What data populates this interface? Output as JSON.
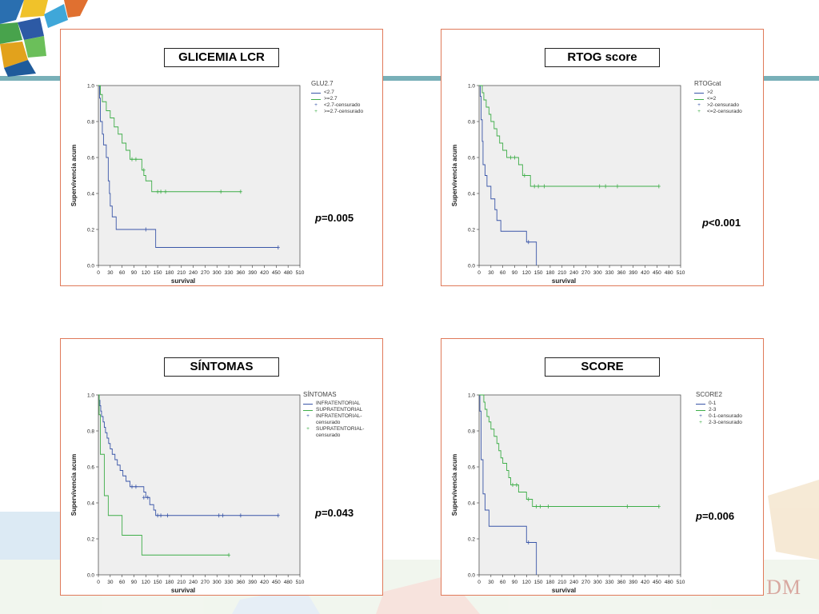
{
  "watermark": "DM",
  "charts": [
    {
      "title": "GLICEMIA LCR",
      "legend_title": "GLU2.7",
      "legend": [
        "<2.7",
        ">=2.7",
        "<2.7-censurado",
        ">=2.7-censurado"
      ],
      "pvalue_prefix": "p",
      "pvalue_rest": "=0.005"
    },
    {
      "title": "RTOG score",
      "legend_title": "RTOGcat",
      "legend": [
        ">2",
        "<=2",
        ">2-censurado",
        "<=2-censurado"
      ],
      "pvalue_prefix": "p",
      "pvalue_rest": "<0.001"
    },
    {
      "title": "SÍNTOMAS",
      "legend_title": "SÍNTOMAS",
      "legend": [
        "INFRATENTORIAL",
        "SUPRATENTORIAL",
        "INFRATENTORIAL-censurado",
        "SUPRATENTORIAL-censurado"
      ],
      "pvalue_prefix": "p",
      "pvalue_rest": "=0.043"
    },
    {
      "title": "SCORE",
      "legend_title": "SCORE2",
      "legend": [
        "0-1",
        "2-3",
        "0-1-censurado",
        "2-3-censurado"
      ],
      "pvalue_prefix": "p",
      "pvalue_rest": "=0.006"
    }
  ],
  "chart_data": [
    {
      "type": "line",
      "subtype": "kaplan-meier step",
      "title": "GLICEMIA LCR",
      "xlabel": "survival",
      "ylabel": "Supervivencia acum",
      "xlim": [
        0,
        510
      ],
      "ylim": [
        0,
        1.0
      ],
      "xticks": [
        0,
        30,
        60,
        90,
        120,
        150,
        180,
        210,
        240,
        270,
        300,
        330,
        360,
        390,
        420,
        450,
        480,
        510
      ],
      "yticks": [
        0.0,
        0.2,
        0.4,
        0.6,
        0.8,
        1.0
      ],
      "colors": {
        "blue": "#3a56a8",
        "green": "#3fae49"
      },
      "series": [
        {
          "name": "<2.7",
          "color": "#3a56a8",
          "steps": [
            [
              0,
              1.0
            ],
            [
              3,
              0.93
            ],
            [
              5,
              0.8
            ],
            [
              10,
              0.73
            ],
            [
              13,
              0.67
            ],
            [
              20,
              0.6
            ],
            [
              25,
              0.47
            ],
            [
              28,
              0.4
            ],
            [
              30,
              0.33
            ],
            [
              35,
              0.27
            ],
            [
              45,
              0.2
            ],
            [
              145,
              0.1
            ],
            [
              455,
              0.1
            ]
          ],
          "censored": [
            [
              120,
              0.2
            ],
            [
              455,
              0.1
            ]
          ]
        },
        {
          "name": ">=2.7",
          "color": "#3fae49",
          "steps": [
            [
              0,
              1.0
            ],
            [
              5,
              0.95
            ],
            [
              10,
              0.91
            ],
            [
              20,
              0.86
            ],
            [
              30,
              0.82
            ],
            [
              40,
              0.77
            ],
            [
              50,
              0.73
            ],
            [
              60,
              0.68
            ],
            [
              70,
              0.64
            ],
            [
              80,
              0.59
            ],
            [
              110,
              0.53
            ],
            [
              115,
              0.5
            ],
            [
              120,
              0.47
            ],
            [
              135,
              0.41
            ],
            [
              360,
              0.41
            ]
          ],
          "censored": [
            [
              85,
              0.59
            ],
            [
              95,
              0.59
            ],
            [
              115,
              0.53
            ],
            [
              150,
              0.41
            ],
            [
              158,
              0.41
            ],
            [
              170,
              0.41
            ],
            [
              310,
              0.41
            ],
            [
              360,
              0.41
            ]
          ]
        }
      ]
    },
    {
      "type": "line",
      "subtype": "kaplan-meier step",
      "title": "RTOG score",
      "xlabel": "survival",
      "ylabel": "Supervivencia acum",
      "xlim": [
        0,
        510
      ],
      "ylim": [
        0,
        1.0
      ],
      "xticks": [
        0,
        30,
        60,
        90,
        120,
        150,
        180,
        210,
        240,
        270,
        300,
        330,
        360,
        390,
        420,
        450,
        480,
        510
      ],
      "yticks": [
        0.0,
        0.2,
        0.4,
        0.6,
        0.8,
        1.0
      ],
      "series": [
        {
          "name": ">2",
          "color": "#3a56a8",
          "steps": [
            [
              0,
              1.0
            ],
            [
              3,
              0.94
            ],
            [
              5,
              0.81
            ],
            [
              8,
              0.69
            ],
            [
              10,
              0.56
            ],
            [
              15,
              0.5
            ],
            [
              20,
              0.44
            ],
            [
              30,
              0.37
            ],
            [
              40,
              0.31
            ],
            [
              45,
              0.25
            ],
            [
              55,
              0.19
            ],
            [
              120,
              0.13
            ],
            [
              145,
              0.0
            ]
          ],
          "censored": [
            [
              125,
              0.13
            ]
          ]
        },
        {
          "name": "<=2",
          "color": "#3fae49",
          "steps": [
            [
              0,
              1.0
            ],
            [
              8,
              0.96
            ],
            [
              12,
              0.92
            ],
            [
              18,
              0.88
            ],
            [
              25,
              0.84
            ],
            [
              30,
              0.8
            ],
            [
              38,
              0.76
            ],
            [
              45,
              0.72
            ],
            [
              52,
              0.68
            ],
            [
              60,
              0.64
            ],
            [
              70,
              0.6
            ],
            [
              100,
              0.56
            ],
            [
              110,
              0.5
            ],
            [
              130,
              0.44
            ],
            [
              455,
              0.44
            ]
          ],
          "censored": [
            [
              80,
              0.6
            ],
            [
              90,
              0.6
            ],
            [
              115,
              0.5
            ],
            [
              140,
              0.44
            ],
            [
              150,
              0.44
            ],
            [
              165,
              0.44
            ],
            [
              305,
              0.44
            ],
            [
              320,
              0.44
            ],
            [
              350,
              0.44
            ],
            [
              455,
              0.44
            ]
          ]
        }
      ]
    },
    {
      "type": "line",
      "subtype": "kaplan-meier step",
      "title": "SÍNTOMAS",
      "xlabel": "survival",
      "ylabel": "Supervivencia acum",
      "xlim": [
        0,
        510
      ],
      "ylim": [
        0,
        1.0
      ],
      "xticks": [
        0,
        30,
        60,
        90,
        120,
        150,
        180,
        210,
        240,
        270,
        300,
        330,
        360,
        390,
        420,
        450,
        480,
        510
      ],
      "yticks": [
        0.0,
        0.2,
        0.4,
        0.6,
        0.8,
        1.0
      ],
      "series": [
        {
          "name": "INFRATENTORIAL",
          "color": "#3a56a8",
          "steps": [
            [
              0,
              1.0
            ],
            [
              2,
              0.97
            ],
            [
              4,
              0.94
            ],
            [
              6,
              0.91
            ],
            [
              8,
              0.88
            ],
            [
              12,
              0.85
            ],
            [
              15,
              0.82
            ],
            [
              18,
              0.79
            ],
            [
              22,
              0.76
            ],
            [
              26,
              0.73
            ],
            [
              30,
              0.7
            ],
            [
              35,
              0.67
            ],
            [
              42,
              0.64
            ],
            [
              48,
              0.61
            ],
            [
              55,
              0.58
            ],
            [
              62,
              0.55
            ],
            [
              70,
              0.52
            ],
            [
              80,
              0.49
            ],
            [
              115,
              0.46
            ],
            [
              120,
              0.43
            ],
            [
              130,
              0.39
            ],
            [
              140,
              0.36
            ],
            [
              145,
              0.33
            ],
            [
              455,
              0.33
            ]
          ],
          "censored": [
            [
              85,
              0.49
            ],
            [
              95,
              0.49
            ],
            [
              115,
              0.43
            ],
            [
              125,
              0.43
            ],
            [
              150,
              0.33
            ],
            [
              158,
              0.33
            ],
            [
              175,
              0.33
            ],
            [
              305,
              0.33
            ],
            [
              315,
              0.33
            ],
            [
              360,
              0.33
            ],
            [
              455,
              0.33
            ]
          ]
        },
        {
          "name": "SUPRATENTORIAL",
          "color": "#3fae49",
          "steps": [
            [
              0,
              1.0
            ],
            [
              2,
              0.89
            ],
            [
              5,
              0.67
            ],
            [
              15,
              0.44
            ],
            [
              25,
              0.33
            ],
            [
              60,
              0.22
            ],
            [
              110,
              0.11
            ],
            [
              330,
              0.11
            ]
          ],
          "censored": [
            [
              330,
              0.11
            ]
          ]
        }
      ]
    },
    {
      "type": "line",
      "subtype": "kaplan-meier step",
      "title": "SCORE",
      "xlabel": "survival",
      "ylabel": "Supervivencia acum",
      "xlim": [
        0,
        510
      ],
      "ylim": [
        0,
        1.0
      ],
      "xticks": [
        0,
        30,
        60,
        90,
        120,
        150,
        180,
        210,
        240,
        270,
        300,
        330,
        360,
        390,
        420,
        450,
        480,
        510
      ],
      "yticks": [
        0.0,
        0.2,
        0.4,
        0.6,
        0.8,
        1.0
      ],
      "series": [
        {
          "name": "0-1",
          "color": "#3a56a8",
          "steps": [
            [
              0,
              1.0
            ],
            [
              2,
              0.91
            ],
            [
              5,
              0.64
            ],
            [
              10,
              0.45
            ],
            [
              15,
              0.36
            ],
            [
              25,
              0.27
            ],
            [
              120,
              0.18
            ],
            [
              145,
              0.0
            ]
          ],
          "censored": [
            [
              125,
              0.18
            ]
          ]
        },
        {
          "name": "2-3",
          "color": "#3fae49",
          "steps": [
            [
              0,
              1.0
            ],
            [
              12,
              0.96
            ],
            [
              15,
              0.92
            ],
            [
              20,
              0.88
            ],
            [
              25,
              0.85
            ],
            [
              30,
              0.81
            ],
            [
              38,
              0.77
            ],
            [
              45,
              0.73
            ],
            [
              50,
              0.69
            ],
            [
              55,
              0.65
            ],
            [
              60,
              0.62
            ],
            [
              70,
              0.58
            ],
            [
              75,
              0.54
            ],
            [
              80,
              0.5
            ],
            [
              100,
              0.46
            ],
            [
              120,
              0.42
            ],
            [
              135,
              0.38
            ],
            [
              455,
              0.38
            ]
          ],
          "censored": [
            [
              85,
              0.5
            ],
            [
              95,
              0.5
            ],
            [
              125,
              0.42
            ],
            [
              145,
              0.38
            ],
            [
              155,
              0.38
            ],
            [
              175,
              0.38
            ],
            [
              375,
              0.38
            ],
            [
              455,
              0.38
            ]
          ]
        }
      ]
    }
  ]
}
